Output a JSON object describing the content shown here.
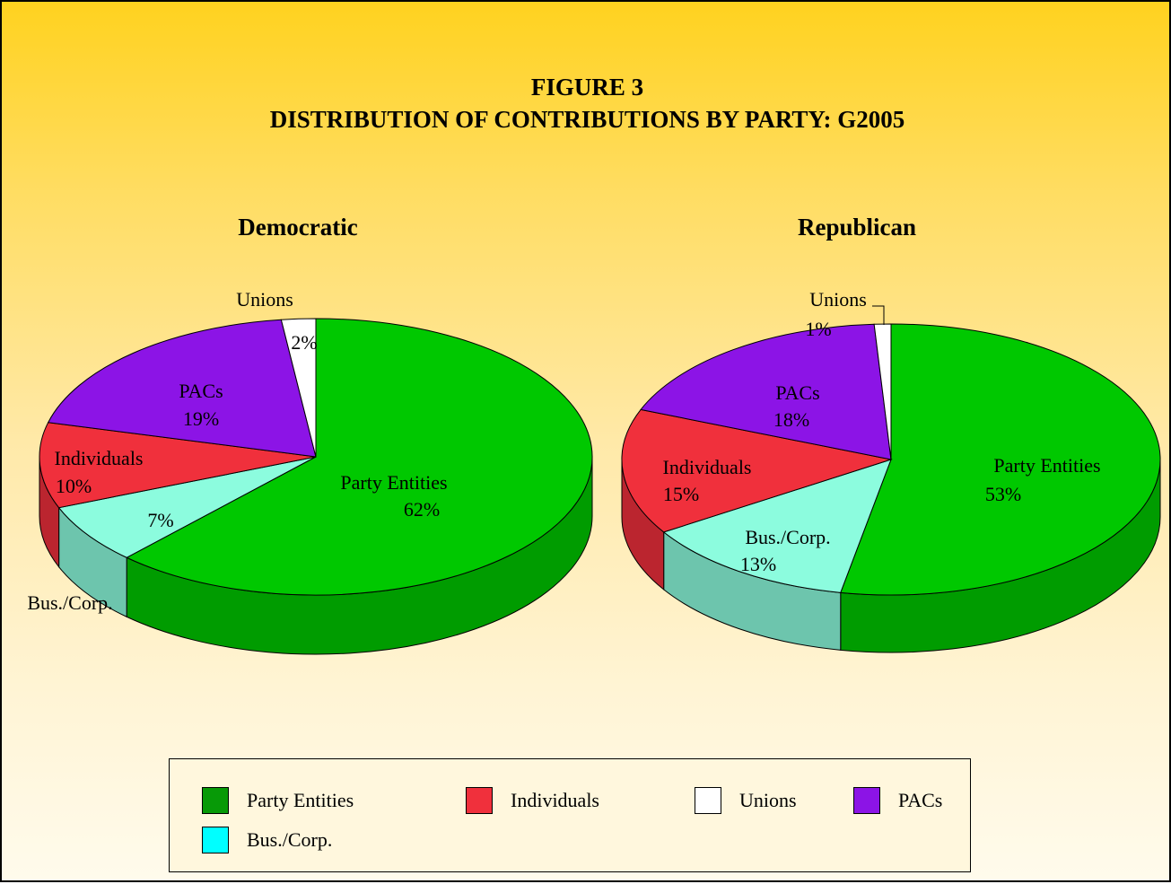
{
  "figure_label": "FIGURE 3",
  "figure_title": "DISTRIBUTION OF CONTRIBUTIONS BY PARTY: G2005",
  "colors": {
    "Party Entities": "#00c800",
    "Individuals": "#f0303c",
    "Unions": "#ffffff",
    "PACs": "#8c14e6",
    "Bus./Corp.": "#8cfcde"
  },
  "legend": {
    "items": [
      {
        "name": "Party Entities",
        "color": "#079a07"
      },
      {
        "name": "Individuals",
        "color": "#f0303c"
      },
      {
        "name": "Unions",
        "color": "#ffffff"
      },
      {
        "name": "PACs",
        "color": "#8c14e6"
      },
      {
        "name": "Bus./Corp.",
        "color": "#00ffff"
      }
    ]
  },
  "chart_data": [
    {
      "type": "pie",
      "title": "Democratic",
      "slices": [
        {
          "label": "Party Entities",
          "value": 62,
          "display": "62%"
        },
        {
          "label": "Bus./Corp.",
          "value": 7,
          "display": "7%"
        },
        {
          "label": "Individuals",
          "value": 10,
          "display": "10%"
        },
        {
          "label": "PACs",
          "value": 19,
          "display": "19%"
        },
        {
          "label": "Unions",
          "value": 2,
          "display": "2%"
        }
      ]
    },
    {
      "type": "pie",
      "title": "Republican",
      "slices": [
        {
          "label": "Party Entities",
          "value": 53,
          "display": "53%"
        },
        {
          "label": "Bus./Corp.",
          "value": 13,
          "display": "13%"
        },
        {
          "label": "Individuals",
          "value": 15,
          "display": "15%"
        },
        {
          "label": "PACs",
          "value": 18,
          "display": "18%"
        },
        {
          "label": "Unions",
          "value": 1,
          "display": "1%"
        }
      ]
    }
  ]
}
